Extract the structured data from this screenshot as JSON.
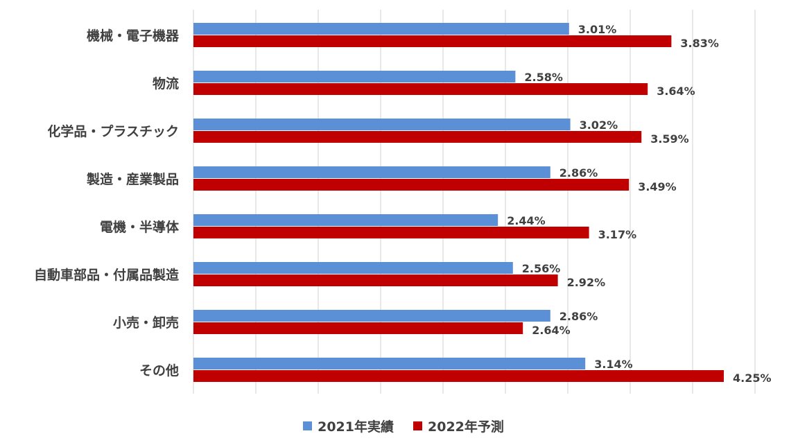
{
  "chart_data": {
    "type": "bar",
    "orientation": "horizontal",
    "categories": [
      "機械・電子機器",
      "物流",
      "化学品・プラスチック",
      "製造・産業製品",
      "電機・半導体",
      "自動車部品・付属品製造",
      "小売・卸売",
      "その他"
    ],
    "series": [
      {
        "name": "2021年実績",
        "color": "#5b8fd6",
        "values": [
          3.01,
          2.58,
          3.02,
          2.86,
          2.44,
          2.56,
          2.86,
          3.14
        ],
        "labels": [
          "3.01%",
          "2.58%",
          "3.02%",
          "2.86%",
          "2.44%",
          "2.56%",
          "2.86%",
          "3.14%"
        ]
      },
      {
        "name": "2022年予測",
        "color": "#c00000",
        "values": [
          3.83,
          3.64,
          3.59,
          3.49,
          3.17,
          2.92,
          2.64,
          4.25
        ],
        "labels": [
          "3.83%",
          "3.64%",
          "3.59%",
          "3.49%",
          "3.17%",
          "2.92%",
          "2.64%",
          "4.25%"
        ]
      }
    ],
    "xlim": [
      0,
      4.5
    ],
    "grid": true,
    "legend": "bottom-center",
    "title": "",
    "xlabel": "",
    "ylabel": ""
  }
}
